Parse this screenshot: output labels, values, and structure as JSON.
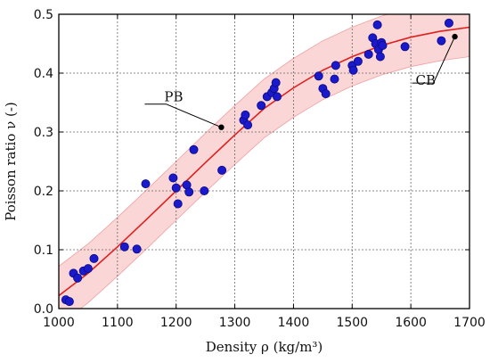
{
  "chart_data": {
    "type": "scatter",
    "xlabel": "Density ρ (kg/m³)",
    "ylabel": "Poisson ratio ν (-)",
    "xlim": [
      1000,
      1700
    ],
    "ylim": [
      0,
      0.5
    ],
    "x_ticks": [
      "1000",
      "1100",
      "1200",
      "1300",
      "1400",
      "1500",
      "1600",
      "1700"
    ],
    "y_ticks": [
      "0.0",
      "0.1",
      "0.2",
      "0.3",
      "0.4",
      "0.5"
    ],
    "grid": true,
    "colors": {
      "points": "#1a1acc",
      "points_edge": "#0a0a80",
      "fit_line": "#e02020",
      "band": "#f8c8c8",
      "annotation": "#000000"
    },
    "points": [
      [
        1012,
        0.015
      ],
      [
        1018,
        0.012
      ],
      [
        1025,
        0.06
      ],
      [
        1032,
        0.052
      ],
      [
        1042,
        0.064
      ],
      [
        1050,
        0.068
      ],
      [
        1060,
        0.085
      ],
      [
        1112,
        0.105
      ],
      [
        1133,
        0.101
      ],
      [
        1148,
        0.212
      ],
      [
        1195,
        0.222
      ],
      [
        1200,
        0.205
      ],
      [
        1203,
        0.178
      ],
      [
        1218,
        0.21
      ],
      [
        1222,
        0.198
      ],
      [
        1230,
        0.27
      ],
      [
        1248,
        0.2
      ],
      [
        1278,
        0.235
      ],
      [
        1315,
        0.32
      ],
      [
        1318,
        0.329
      ],
      [
        1322,
        0.312
      ],
      [
        1345,
        0.345
      ],
      [
        1355,
        0.36
      ],
      [
        1363,
        0.367
      ],
      [
        1367,
        0.374
      ],
      [
        1370,
        0.384
      ],
      [
        1372,
        0.36
      ],
      [
        1443,
        0.395
      ],
      [
        1450,
        0.374
      ],
      [
        1455,
        0.365
      ],
      [
        1470,
        0.39
      ],
      [
        1472,
        0.413
      ],
      [
        1500,
        0.413
      ],
      [
        1502,
        0.405
      ],
      [
        1510,
        0.42
      ],
      [
        1528,
        0.432
      ],
      [
        1535,
        0.46
      ],
      [
        1540,
        0.45
      ],
      [
        1543,
        0.482
      ],
      [
        1545,
        0.44
      ],
      [
        1548,
        0.428
      ],
      [
        1550,
        0.452
      ],
      [
        1552,
        0.447
      ],
      [
        1590,
        0.445
      ],
      [
        1652,
        0.455
      ],
      [
        1665,
        0.485
      ]
    ],
    "fit_curve": [
      [
        1000,
        0.022
      ],
      [
        1050,
        0.06
      ],
      [
        1100,
        0.105
      ],
      [
        1150,
        0.152
      ],
      [
        1200,
        0.2
      ],
      [
        1250,
        0.248
      ],
      [
        1300,
        0.295
      ],
      [
        1350,
        0.34
      ],
      [
        1400,
        0.375
      ],
      [
        1450,
        0.405
      ],
      [
        1500,
        0.428
      ],
      [
        1550,
        0.447
      ],
      [
        1600,
        0.461
      ],
      [
        1650,
        0.471
      ],
      [
        1700,
        0.478
      ]
    ],
    "band_halfwidth": 0.05,
    "annotations": [
      {
        "label": "PB",
        "x": 1277,
        "y": 0.308
      },
      {
        "label": "CB",
        "x": 1675,
        "y": 0.462
      }
    ]
  }
}
